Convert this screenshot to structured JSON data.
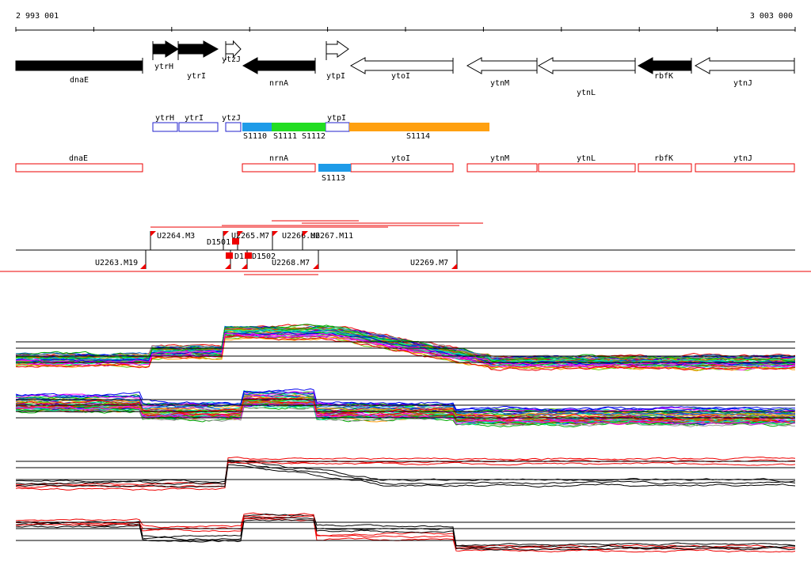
{
  "axis": {
    "start": "2 993 001",
    "end": "3 003 000"
  },
  "genes": [
    "dnaE",
    "ytrH",
    "ytrI",
    "ytzJ",
    "nrnA",
    "ytpI",
    "ytoI",
    "ytnM",
    "ytnL",
    "rbfK",
    "ytnJ"
  ],
  "transcripts_upper": [
    "ytrH",
    "ytrI",
    "ytzJ",
    "ytpI",
    "S1110",
    "S1111",
    "S1112",
    "S1114"
  ],
  "transcripts_lower": [
    "dnaE",
    "nrnA",
    "ytoI",
    "ytnM",
    "ytnL",
    "rbfK",
    "ytnJ",
    "S1113"
  ],
  "sites": [
    "U2264.M3",
    "U2265.M7",
    "U2266.M6",
    "U2267.M11",
    "D1501",
    "U2263.M19",
    "D15",
    "D1502",
    "U2268.M7",
    "U2269.M7"
  ]
}
